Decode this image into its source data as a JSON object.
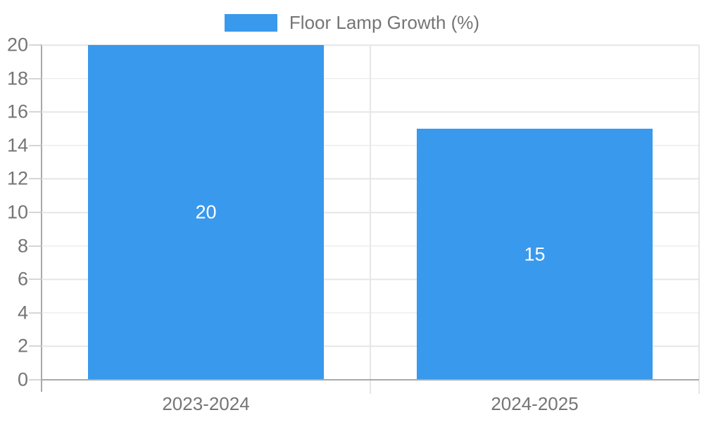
{
  "colors": {
    "bar": "#3999ec",
    "grid": "#e6e6e6",
    "axis": "#a9a9a9",
    "tick": "#d6d6d6",
    "text": "#757575",
    "value_text": "#ffffff"
  },
  "legend": {
    "label": "Floor Lamp Growth (%)"
  },
  "chart_data": {
    "type": "bar",
    "title": "",
    "xlabel": "",
    "ylabel": "",
    "categories": [
      "2023-2024",
      "2024-2025"
    ],
    "series": [
      {
        "name": "Floor Lamp Growth (%)",
        "values": [
          20,
          15
        ]
      }
    ],
    "value_labels_shown": true,
    "ylim": [
      0,
      20
    ],
    "yticks": [
      0,
      2,
      4,
      6,
      8,
      10,
      12,
      14,
      16,
      18,
      20
    ],
    "grid": true,
    "legend_position": "top"
  }
}
